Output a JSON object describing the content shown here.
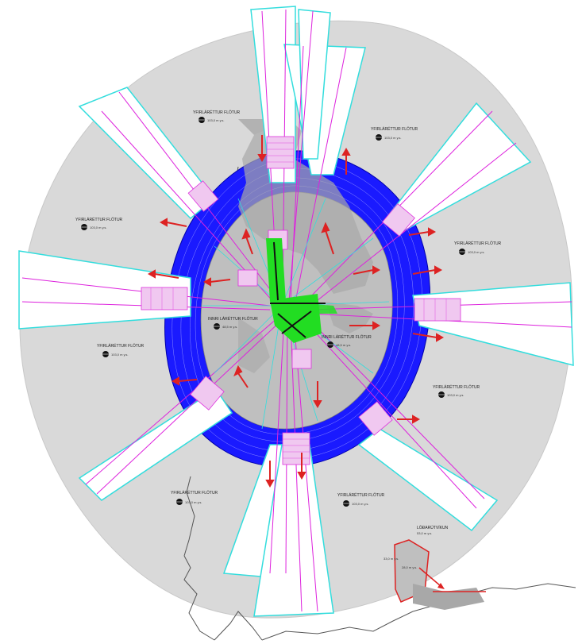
{
  "map": {
    "zone_label": "YFIRLÁRÉTTUR FLÖTUR",
    "zone_elevation": "103,0 m y.s.",
    "inner_zone_label": "INNRI LÁRÉTTUR FLÖTUR",
    "inner_zone_elevation": "48,5 m y.s.",
    "obstacle_label": "LÓÐARÚTVÍKUN",
    "obstacle_elevation": "53,0 m y.s.",
    "obstacle_elevation_2": "33,0 m y.s.",
    "obstacle_elevation_3": "28,0 m y.s.",
    "colors": {
      "outer_surface": "#d9d9d9",
      "conical_ring": "#1a1aff",
      "inner_surface": "#bfbfbf",
      "runway_area": "#22dd22",
      "approach_outline": "#33dddd",
      "approach_centerline": "#dd22dd",
      "transition_hatch": "#dd33dd",
      "arrows": "#dd2222",
      "coastline": "#555555"
    },
    "icons": [
      "elevation-marker-icon",
      "direction-arrow-icon"
    ]
  }
}
